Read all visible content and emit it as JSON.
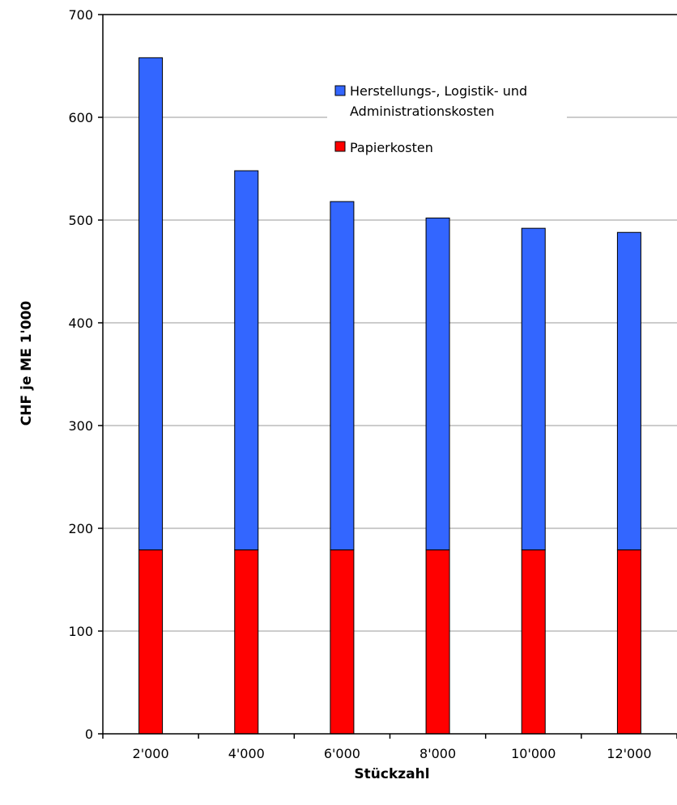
{
  "chart_data": {
    "type": "bar",
    "stacked": true,
    "categories": [
      "2'000",
      "4'000",
      "6'000",
      "8'000",
      "10'000",
      "12'000"
    ],
    "series": [
      {
        "name": "Papierkosten",
        "color": "#ff0000",
        "values": [
          179,
          179,
          179,
          179,
          179,
          179
        ]
      },
      {
        "name": "Herstellungs-, Logistik- und Administrationskosten",
        "name_lines": [
          "Herstellungs-, Logistik- und",
          "Administrationskosten"
        ],
        "color": "#3366ff",
        "values": [
          479,
          369,
          339,
          323,
          313,
          309
        ]
      }
    ],
    "xlabel": "Stückzahl",
    "ylabel": "CHF je ME 1'000",
    "ylim": [
      0,
      700
    ],
    "yticks": [
      0,
      100,
      200,
      300,
      400,
      500,
      600,
      700
    ],
    "grid": true,
    "legend_position": "top-right"
  }
}
